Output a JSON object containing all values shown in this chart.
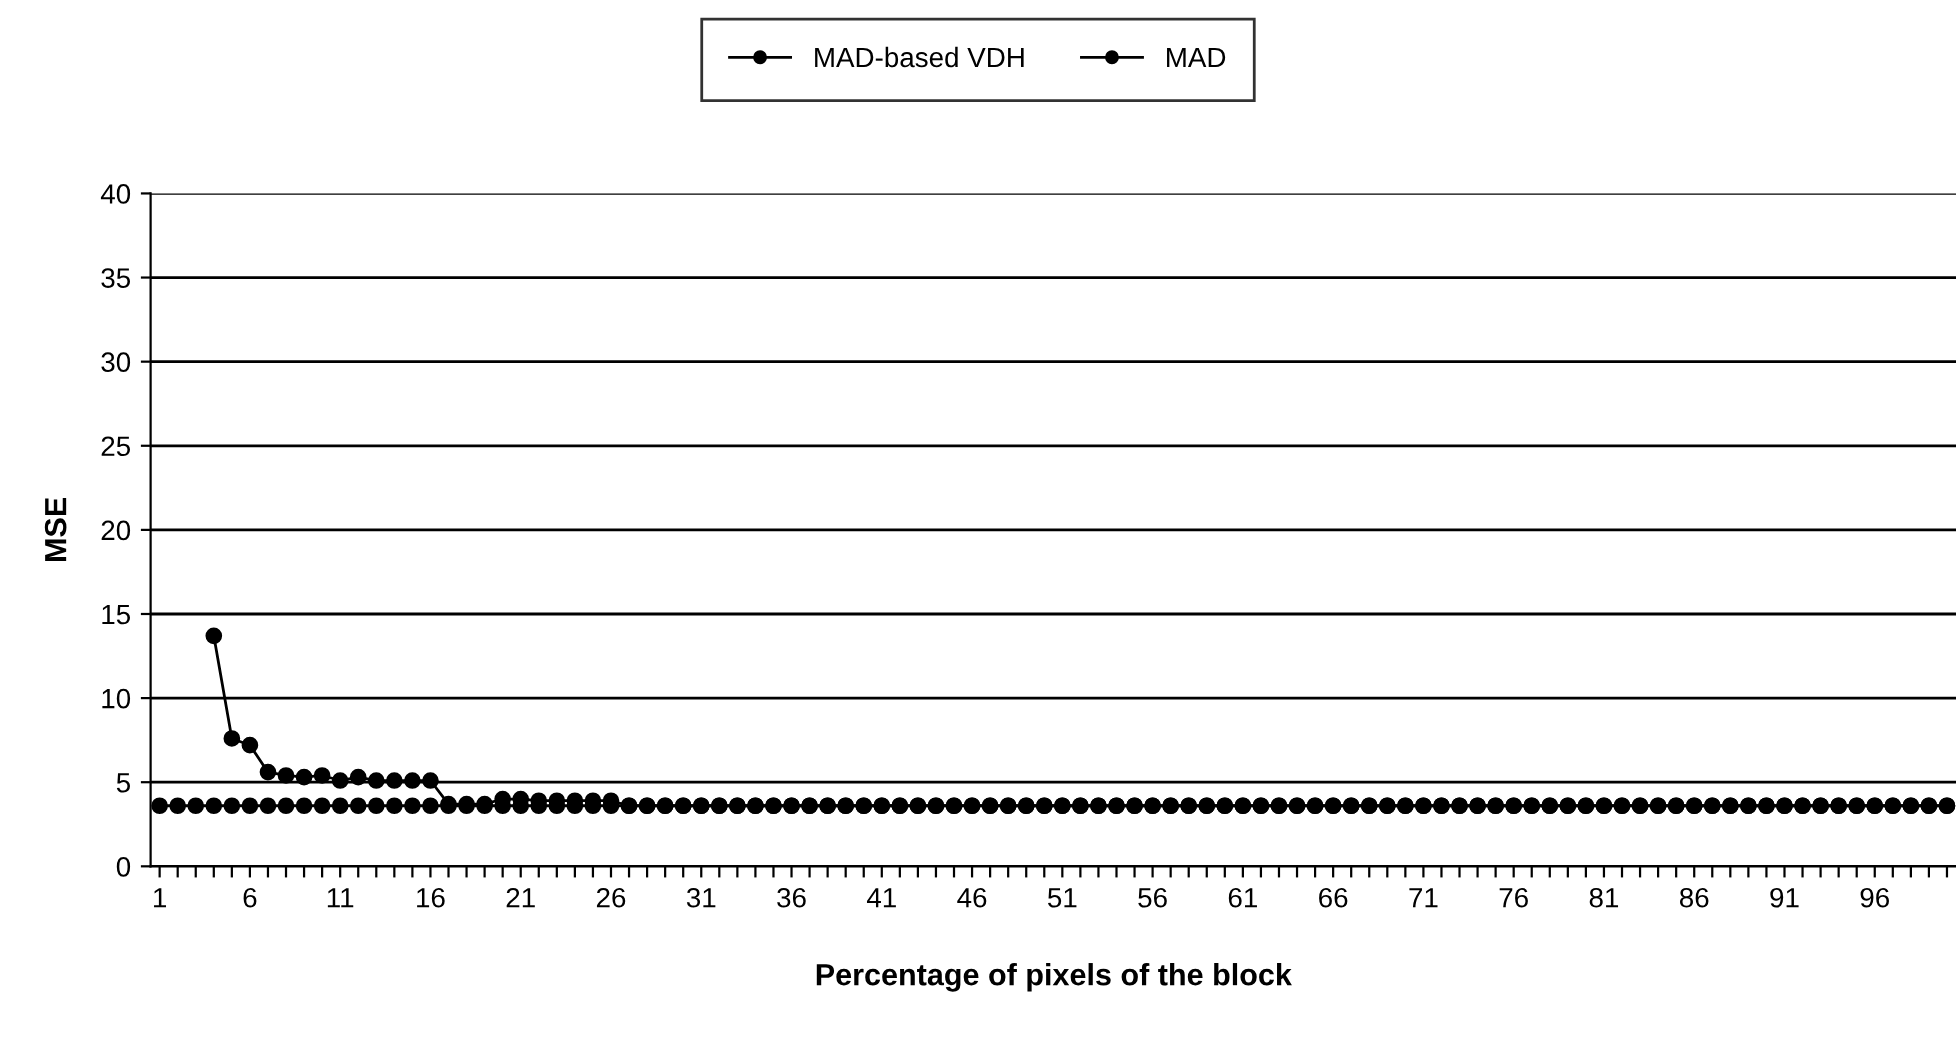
{
  "chart_data": {
    "type": "line",
    "xlabel": "Percentage of pixels of the block",
    "ylabel": "MSE",
    "categories": [
      "1",
      null,
      null,
      null,
      null,
      "6",
      null,
      null,
      null,
      null,
      "11",
      null,
      null,
      null,
      null,
      "16",
      null,
      null,
      null,
      null,
      "21",
      null,
      null,
      null,
      null,
      "26",
      null,
      null,
      null,
      null,
      "31",
      null,
      null,
      null,
      null,
      "36",
      null,
      null,
      null,
      null,
      "41",
      null,
      null,
      null,
      null,
      "46",
      null,
      null,
      null,
      null,
      "51",
      null,
      null,
      null,
      null,
      "56",
      null,
      null,
      null,
      null,
      "61",
      null,
      null,
      null,
      null,
      "66",
      null,
      null,
      null,
      null,
      "71",
      null,
      null,
      null,
      null,
      "76",
      null,
      null,
      null,
      null,
      "81",
      null,
      null,
      null,
      null,
      "86",
      null,
      null,
      null,
      null,
      "91",
      null,
      null,
      null,
      null,
      "96",
      null,
      null,
      null,
      null
    ],
    "series": [
      {
        "name": "MAD-based VDH",
        "color": "#000000",
        "values": [
          null,
          null,
          null,
          13.7,
          7.6,
          7.2,
          5.6,
          5.4,
          5.3,
          5.4,
          5.1,
          5.3,
          5.1,
          5.1,
          5.1,
          5.1,
          3.7,
          3.7,
          3.7,
          4.0,
          4.0,
          3.9,
          3.9,
          3.9,
          3.9,
          3.9,
          3.6,
          3.6,
          3.6,
          3.6,
          3.6,
          3.6,
          3.6,
          3.6,
          3.6,
          3.6,
          3.6,
          3.6,
          3.6,
          3.6,
          3.6,
          3.6,
          3.6,
          3.6,
          3.6,
          3.6,
          3.6,
          3.6,
          3.6,
          3.6,
          3.6,
          3.6,
          3.6,
          3.6,
          3.6,
          3.6,
          3.6,
          3.6,
          3.6,
          3.6,
          3.6,
          3.6,
          3.6,
          3.6,
          3.6,
          3.6,
          3.6,
          3.6,
          3.6,
          3.6,
          3.6,
          3.6,
          3.6,
          3.6,
          3.6,
          3.6,
          3.6,
          3.6,
          3.6,
          3.6,
          3.6,
          3.6,
          3.6,
          3.6,
          3.6,
          3.6,
          3.6,
          3.6,
          3.6,
          3.6,
          3.6,
          3.6,
          3.6,
          3.6,
          3.6,
          3.6,
          3.6,
          3.6,
          3.6,
          3.6
        ]
      },
      {
        "name": "MAD",
        "color": "#000000",
        "values": [
          3.6,
          3.6,
          3.6,
          3.6,
          3.6,
          3.6,
          3.6,
          3.6,
          3.6,
          3.6,
          3.6,
          3.6,
          3.6,
          3.6,
          3.6,
          3.6,
          3.6,
          3.6,
          3.6,
          3.6,
          3.6,
          3.6,
          3.6,
          3.6,
          3.6,
          3.6,
          3.6,
          3.6,
          3.6,
          3.6,
          3.6,
          3.6,
          3.6,
          3.6,
          3.6,
          3.6,
          3.6,
          3.6,
          3.6,
          3.6,
          3.6,
          3.6,
          3.6,
          3.6,
          3.6,
          3.6,
          3.6,
          3.6,
          3.6,
          3.6,
          3.6,
          3.6,
          3.6,
          3.6,
          3.6,
          3.6,
          3.6,
          3.6,
          3.6,
          3.6,
          3.6,
          3.6,
          3.6,
          3.6,
          3.6,
          3.6,
          3.6,
          3.6,
          3.6,
          3.6,
          3.6,
          3.6,
          3.6,
          3.6,
          3.6,
          3.6,
          3.6,
          3.6,
          3.6,
          3.6,
          3.6,
          3.6,
          3.6,
          3.6,
          3.6,
          3.6,
          3.6,
          3.6,
          3.6,
          3.6,
          3.6,
          3.6,
          3.6,
          3.6,
          3.6,
          3.6,
          3.6,
          3.6,
          3.6,
          3.6
        ]
      }
    ],
    "ylim": [
      0,
      40
    ],
    "yticks": [
      0,
      5,
      10,
      15,
      20,
      25,
      30,
      35,
      40
    ],
    "grid": "y",
    "legend": "top",
    "marker": "circle",
    "line_style": "solid"
  }
}
